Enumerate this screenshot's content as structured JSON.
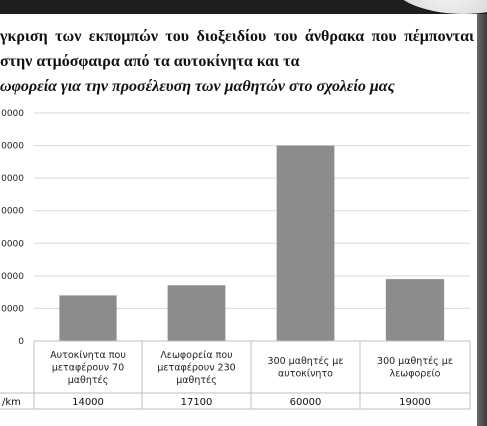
{
  "chart_data": {
    "type": "bar",
    "title_lines": [
      "γκριση των εκπομπών του διοξειδίου του άνθρακα που",
      "πέμπονται στην ατμόσφαιρα από τα αυτοκίνητα και τα",
      "ωφορεία για την προσέλευση των μαθητών στο σχολείο μας"
    ],
    "categories": [
      [
        "Αυτοκίνητα που",
        "μεταφέρουν 70",
        "μαθητές"
      ],
      [
        "Λεωφορεία που",
        "μεταφέρουν 230",
        "μαθητές"
      ],
      [
        "300 μαθητές με",
        "αυτοκίνητο"
      ],
      [
        "300 μαθητές με",
        "λεωφορείο"
      ]
    ],
    "values": [
      14000,
      17100,
      60000,
      19000
    ],
    "value_labels": [
      "14000",
      "17100",
      "60000",
      "19000"
    ],
    "series_label": "/km",
    "yticks": [
      0,
      10000,
      20000,
      30000,
      40000,
      50000,
      60000,
      70000
    ],
    "ytick_labels": [
      "0",
      "0000",
      "0000",
      "0000",
      "0000",
      "0000",
      "0000",
      "0000"
    ],
    "ylim": [
      0,
      70000
    ],
    "grid": true,
    "bar_color": "#8c8c8c",
    "grid_color": "#d9d9d9"
  }
}
